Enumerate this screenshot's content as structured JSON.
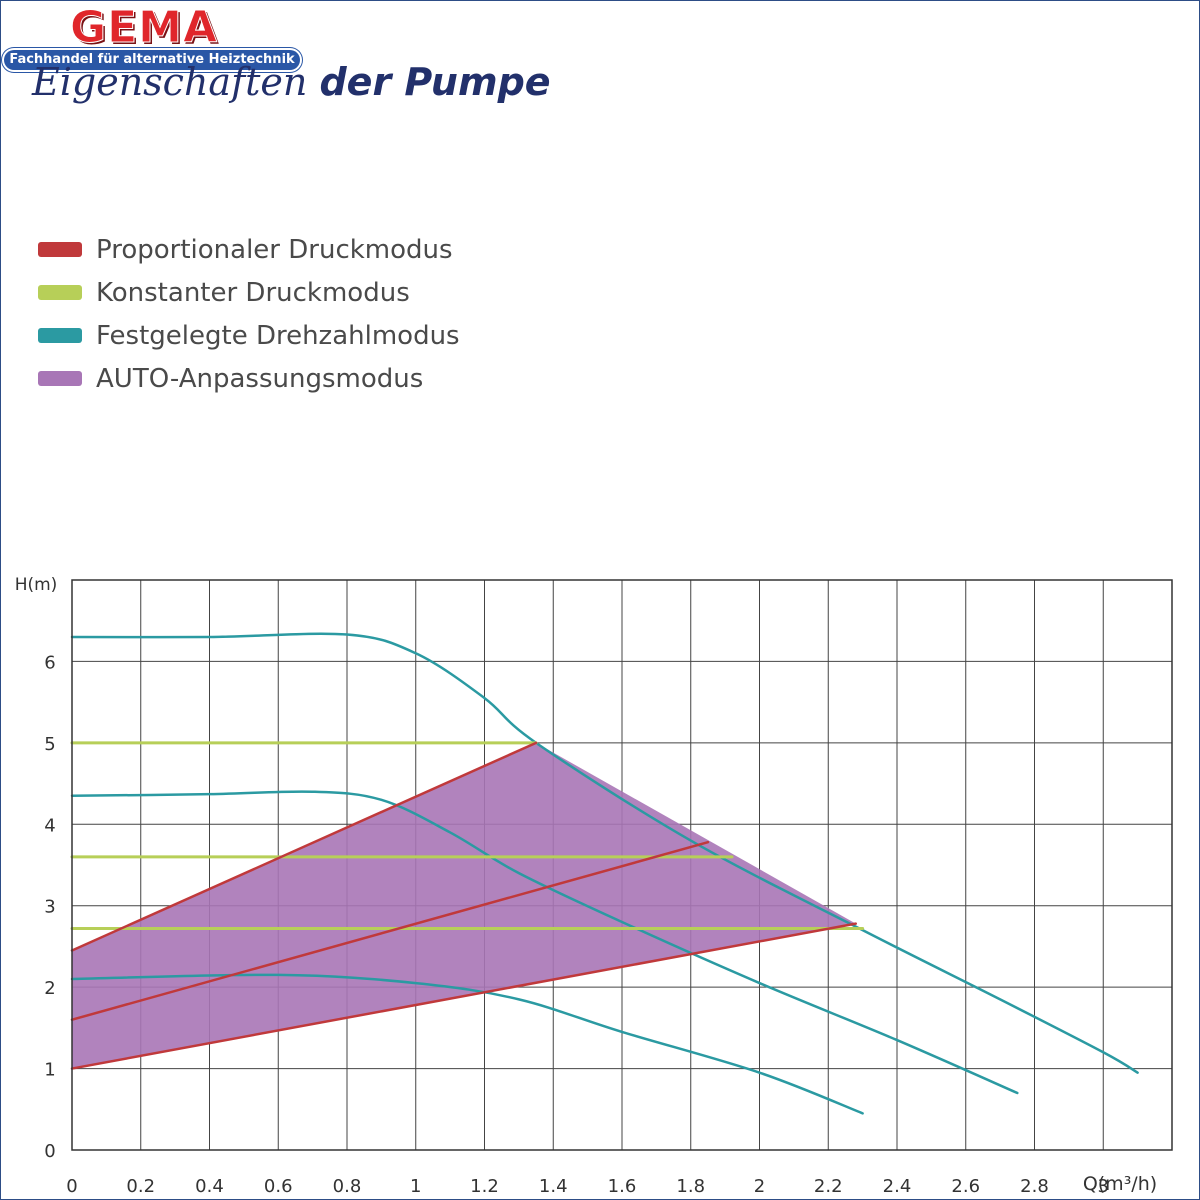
{
  "brand": {
    "logo_text": "GEMA",
    "tagline": "Fachhandel für alternative Heiztechnik",
    "logo_color": "#e0262b",
    "tagline_color": "#2a57a6"
  },
  "title_part1": "Eigenschaften",
  "title_part2": "der Pumpe",
  "legend": [
    {
      "label": "Proportionaler Druckmodus",
      "color": "#c0393b"
    },
    {
      "label": "Konstanter Druckmodus",
      "color": "#b7cf58"
    },
    {
      "label": "Festgelegte Drehzahlmodus",
      "color": "#2b9aa2"
    },
    {
      "label": "AUTO-Anpassungsmodus",
      "color": "#a876b6"
    }
  ],
  "chart_data": {
    "type": "line",
    "title": "",
    "xlabel": "Q(m³/h)",
    "ylabel": "H(m)",
    "xlim": [
      0,
      3.2
    ],
    "ylim": [
      0,
      7
    ],
    "x_ticks": [
      "0",
      "0.2",
      "0.4",
      "0.6",
      "0.8",
      "1",
      "1.2",
      "1.4",
      "1.6",
      "1.8",
      "2",
      "2.2",
      "2.4",
      "2.6",
      "2.8",
      "3"
    ],
    "y_ticks": [
      "0",
      "1",
      "2",
      "3",
      "4",
      "5",
      "6"
    ],
    "grid": true,
    "legend_position": "above-chart-left",
    "auto_region": {
      "name": "AUTO-Anpassungsmodus",
      "color": "#a876b6",
      "polygon": [
        [
          0,
          1.0
        ],
        [
          2.28,
          2.78
        ],
        [
          1.35,
          5.0
        ],
        [
          0,
          2.45
        ]
      ]
    },
    "series": [
      {
        "name": "Festgelegte Drehzahlmodus",
        "mode": "fixed-speed",
        "color": "#2b9aa2",
        "points": [
          [
            0,
            6.3
          ],
          [
            0.4,
            6.3
          ],
          [
            0.8,
            6.33
          ],
          [
            1.0,
            6.1
          ],
          [
            1.2,
            5.55
          ],
          [
            1.35,
            5.0
          ],
          [
            1.8,
            3.8
          ],
          [
            2.3,
            2.7
          ],
          [
            2.7,
            1.85
          ],
          [
            3.0,
            1.2
          ],
          [
            3.1,
            0.95
          ]
        ]
      },
      {
        "name": "Festgelegte Drehzahlmodus",
        "mode": "fixed-speed",
        "color": "#2b9aa2",
        "points": [
          [
            0,
            4.35
          ],
          [
            0.4,
            4.37
          ],
          [
            0.7,
            4.4
          ],
          [
            0.9,
            4.3
          ],
          [
            1.1,
            3.9
          ],
          [
            1.3,
            3.4
          ],
          [
            1.6,
            2.8
          ],
          [
            2.0,
            2.05
          ],
          [
            2.4,
            1.35
          ],
          [
            2.75,
            0.7
          ]
        ]
      },
      {
        "name": "Festgelegte Drehzahlmodus",
        "mode": "fixed-speed",
        "color": "#2b9aa2",
        "points": [
          [
            0,
            2.1
          ],
          [
            0.6,
            2.15
          ],
          [
            1.0,
            2.05
          ],
          [
            1.3,
            1.85
          ],
          [
            1.6,
            1.45
          ],
          [
            2.0,
            0.95
          ],
          [
            2.3,
            0.45
          ]
        ]
      },
      {
        "name": "Konstanter Druckmodus",
        "mode": "constant",
        "color": "#b7cf58",
        "points": [
          [
            0,
            5.0
          ],
          [
            1.35,
            5.0
          ]
        ]
      },
      {
        "name": "Konstanter Druckmodus",
        "mode": "constant",
        "color": "#b7cf58",
        "points": [
          [
            0,
            3.6
          ],
          [
            1.92,
            3.6
          ]
        ]
      },
      {
        "name": "Konstanter Druckmodus",
        "mode": "constant",
        "color": "#b7cf58",
        "points": [
          [
            0,
            2.72
          ],
          [
            2.3,
            2.72
          ]
        ]
      },
      {
        "name": "Proportionaler Druckmodus",
        "mode": "proportional",
        "color": "#c0393b",
        "points": [
          [
            0,
            2.45
          ],
          [
            1.35,
            5.0
          ]
        ]
      },
      {
        "name": "Proportionaler Druckmodus",
        "mode": "proportional",
        "color": "#c0393b",
        "points": [
          [
            0,
            1.6
          ],
          [
            1.85,
            3.78
          ]
        ]
      },
      {
        "name": "Proportionaler Druckmodus",
        "mode": "proportional",
        "color": "#c0393b",
        "points": [
          [
            0,
            1.0
          ],
          [
            2.28,
            2.78
          ]
        ]
      }
    ]
  }
}
